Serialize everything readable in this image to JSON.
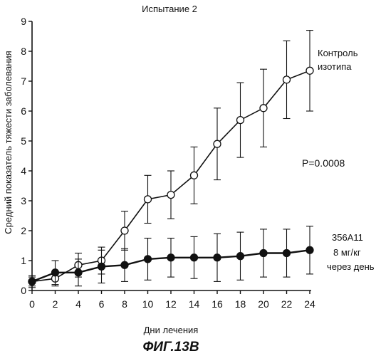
{
  "chart_data": {
    "type": "line",
    "title": "Испытание 2",
    "xlabel": "Дни лечения",
    "ylabel": "Средний показатель тяжести заболевания",
    "xlim": [
      0,
      24
    ],
    "ylim": [
      0,
      9
    ],
    "x_ticks": [
      "0",
      "2",
      "4",
      "6",
      "8",
      "10",
      "12",
      "14",
      "16",
      "18",
      "20",
      "22",
      "24"
    ],
    "y_ticks": [
      "0",
      "1",
      "2",
      "3",
      "4",
      "5",
      "6",
      "7",
      "8",
      "9"
    ],
    "grid": false,
    "series": [
      {
        "name": "Контроль изотипа",
        "marker": "open-circle",
        "x": [
          0,
          2,
          4,
          6,
          8,
          10,
          12,
          14,
          16,
          18,
          20,
          22,
          24
        ],
        "y": [
          0.3,
          0.4,
          0.85,
          1.0,
          2.0,
          3.05,
          3.2,
          3.85,
          4.9,
          5.7,
          6.1,
          7.05,
          7.35
        ],
        "error": [
          0.2,
          0.25,
          0.4,
          0.45,
          0.65,
          0.8,
          0.8,
          0.95,
          1.2,
          1.25,
          1.3,
          1.3,
          1.35
        ]
      },
      {
        "name": "356A11 8 мг/кг через день",
        "marker": "filled-circle",
        "x": [
          0,
          2,
          4,
          6,
          8,
          10,
          12,
          14,
          16,
          18,
          20,
          22,
          24
        ],
        "y": [
          0.3,
          0.6,
          0.6,
          0.8,
          0.85,
          1.05,
          1.1,
          1.1,
          1.1,
          1.15,
          1.25,
          1.25,
          1.35
        ],
        "error": [
          0.15,
          0.4,
          0.45,
          0.55,
          0.55,
          0.7,
          0.65,
          0.7,
          0.8,
          0.8,
          0.8,
          0.8,
          0.8
        ]
      }
    ],
    "annotations": {
      "pvalue": "P=0.0008",
      "control_label_line1": "Контроль",
      "control_label_line2": "изотипа",
      "treat_label_line1": "356A11",
      "treat_label_line2": "8 мг/кг",
      "treat_label_line3": "через день"
    }
  },
  "figure_caption": "ФИГ.13В"
}
